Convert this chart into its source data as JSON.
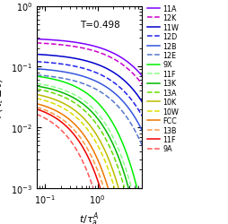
{
  "annotation": "T=0.498",
  "xlim": [
    0.07,
    7.0
  ],
  "ylim": [
    0.001,
    1.0
  ],
  "series": [
    {
      "label": "11A",
      "color": "#7B00FF",
      "linestyle": "solid",
      "tau": 4.2,
      "beta": 0.72,
      "A": 0.3
    },
    {
      "label": "12K",
      "color": "#CC00CC",
      "linestyle": "dashed",
      "tau": 3.6,
      "beta": 0.72,
      "A": 0.26
    },
    {
      "label": "11W",
      "color": "#0000CC",
      "linestyle": "solid",
      "tau": 3.0,
      "beta": 0.73,
      "A": 0.17
    },
    {
      "label": "12D",
      "color": "#2222EE",
      "linestyle": "dashed",
      "tau": 2.5,
      "beta": 0.73,
      "A": 0.13
    },
    {
      "label": "12B",
      "color": "#3355DD",
      "linestyle": "solid",
      "tau": 2.1,
      "beta": 0.73,
      "A": 0.1
    },
    {
      "label": "12E",
      "color": "#5577CC",
      "linestyle": "dashed",
      "tau": 1.75,
      "beta": 0.73,
      "A": 0.08
    },
    {
      "label": "9X",
      "color": "#00EE00",
      "linestyle": "solid",
      "tau": 0.85,
      "beta": 0.78,
      "A": 0.08
    },
    {
      "label": "11F",
      "color": "#88FF88",
      "linestyle": "dashed",
      "tau": 0.72,
      "beta": 0.78,
      "A": 0.062
    },
    {
      "label": "13K",
      "color": "#00BB00",
      "linestyle": "solid",
      "tau": 0.65,
      "beta": 0.78,
      "A": 0.057
    },
    {
      "label": "13A",
      "color": "#66DD00",
      "linestyle": "dashed",
      "tau": 0.56,
      "beta": 0.78,
      "A": 0.052
    },
    {
      "label": "10K",
      "color": "#BBBB00",
      "linestyle": "solid",
      "tau": 0.48,
      "beta": 0.8,
      "A": 0.043
    },
    {
      "label": "10W",
      "color": "#DDDD00",
      "linestyle": "dashed",
      "tau": 0.42,
      "beta": 0.8,
      "A": 0.038
    },
    {
      "label": "FCC",
      "color": "#EE7700",
      "linestyle": "solid",
      "tau": 0.35,
      "beta": 0.82,
      "A": 0.032
    },
    {
      "label": "13B",
      "color": "#FF9944",
      "linestyle": "dashed",
      "tau": 0.3,
      "beta": 0.82,
      "A": 0.029
    },
    {
      "label": "11F",
      "color": "#EE0000",
      "linestyle": "solid",
      "tau": 0.26,
      "beta": 0.82,
      "A": 0.028
    },
    {
      "label": "9A",
      "color": "#FF5555",
      "linestyle": "dashed",
      "tau": 0.2,
      "beta": 0.82,
      "A": 0.025
    }
  ]
}
